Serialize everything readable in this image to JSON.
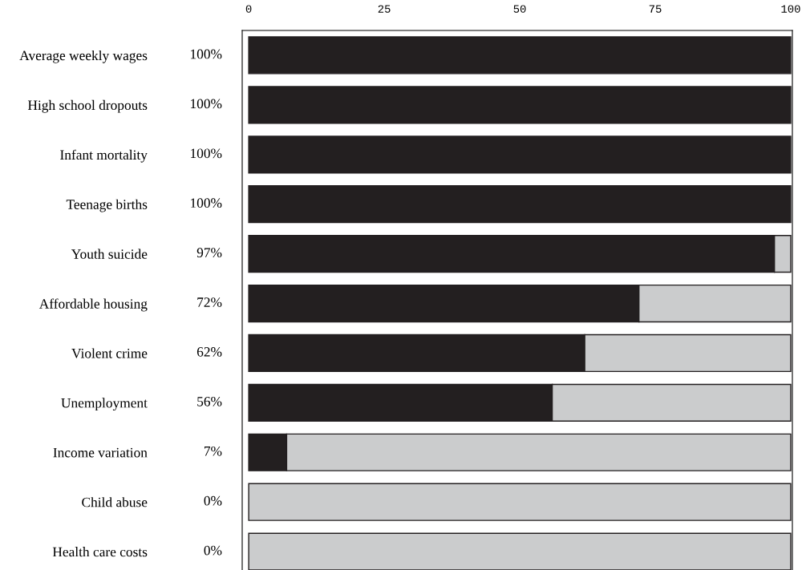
{
  "chart_data": {
    "type": "bar",
    "orientation": "horizontal",
    "stacked": true,
    "categories": [
      "Average weekly wages",
      "High school dropouts",
      "Infant mortality",
      "Teenage births",
      "Youth suicide",
      "Affordable housing",
      "Violent crime",
      "Unemployment",
      "Income variation",
      "Child abuse",
      "Health care costs"
    ],
    "series": [
      {
        "color": "#231f20",
        "values": [
          100,
          100,
          100,
          100,
          97,
          72,
          62,
          56,
          7,
          0,
          0
        ],
        "value_labels": [
          "100%",
          "100%",
          "100%",
          "100%",
          "97%",
          "72%",
          "62%",
          "56%",
          "7%",
          "0%",
          "0%"
        ]
      },
      {
        "color": "#cbcccd",
        "values": [
          0,
          0,
          0,
          0,
          3,
          28,
          38,
          44,
          93,
          100,
          100
        ]
      }
    ],
    "xlim": [
      -1.2,
      100.3
    ],
    "xticks": [
      0,
      25,
      50,
      75,
      100
    ],
    "grid": false,
    "legend": false
  }
}
